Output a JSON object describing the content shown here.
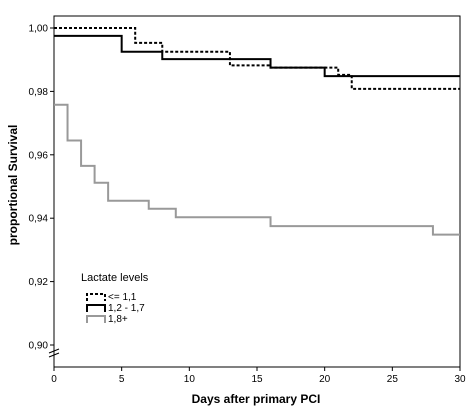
{
  "chart_data": {
    "type": "line",
    "step": true,
    "xlabel": "Days after primary PCI",
    "ylabel": "proportional Survival",
    "xlim": [
      0,
      30
    ],
    "ylim": [
      0.9,
      1.0
    ],
    "x_ticks": [
      0,
      5,
      10,
      15,
      20,
      25,
      30
    ],
    "x_tick_labels": [
      "0",
      "5",
      "10",
      "15",
      "20",
      "25",
      "30"
    ],
    "y_ticks": [
      0.9,
      0.92,
      0.94,
      0.96,
      0.98,
      1.0
    ],
    "y_tick_labels": [
      "0,90",
      "0,92",
      "0,94",
      "0,96",
      "0,98",
      "1,00"
    ],
    "axis_break": true,
    "grid": false,
    "legend": {
      "title": "Lactate levels",
      "position": "bottom-left"
    },
    "series": [
      {
        "name": "<= 1,1",
        "style": "dotted",
        "color": "#000000",
        "x": [
          0,
          6,
          8,
          13,
          16,
          21,
          22,
          30
        ],
        "y": [
          1.0,
          0.9953,
          0.9925,
          0.9882,
          0.9875,
          0.9852,
          0.9808,
          0.9808
        ]
      },
      {
        "name": "1,2 - 1,7",
        "style": "solid",
        "color": "#000000",
        "x": [
          0,
          5,
          8,
          16,
          20,
          30
        ],
        "y": [
          0.9975,
          0.9925,
          0.9902,
          0.9875,
          0.9848,
          0.9848
        ]
      },
      {
        "name": "1,8+",
        "style": "solid",
        "color": "#999999",
        "x": [
          0,
          1,
          2,
          3,
          4,
          7,
          9,
          16,
          28,
          30
        ],
        "y": [
          0.9758,
          0.9645,
          0.9565,
          0.9512,
          0.9455,
          0.943,
          0.9403,
          0.9375,
          0.9348,
          0.9348
        ]
      }
    ]
  }
}
